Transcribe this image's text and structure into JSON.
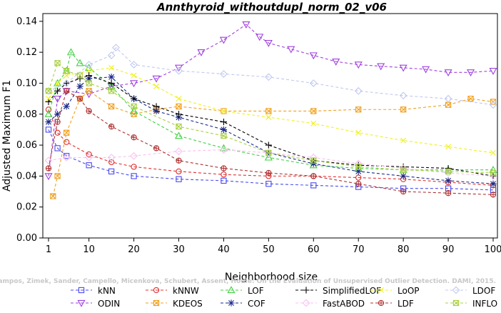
{
  "chart_data": {
    "type": "line",
    "title": "Annthyroid_withoutdupl_norm_02_v06",
    "xlabel": "Neighborhood size",
    "ylabel": "Adjusted Maximum F1",
    "xlim": [
      1,
      100
    ],
    "ylim": [
      0.0,
      0.145
    ],
    "xticks": [
      "1",
      "10",
      "20",
      "30",
      "40",
      "50",
      "60",
      "70",
      "80",
      "90",
      "100"
    ],
    "xtick_values": [
      1,
      10,
      20,
      30,
      40,
      50,
      60,
      70,
      80,
      90,
      100
    ],
    "yticks": [
      "0.00",
      "0.02",
      "0.04",
      "0.06",
      "0.08",
      "0.10",
      "0.12",
      "0.14"
    ],
    "ytick_values": [
      0.0,
      0.02,
      0.04,
      0.06,
      0.08,
      0.1,
      0.12,
      0.14
    ],
    "grid": false,
    "legend_position": "bottom",
    "watermark": "Campos, Zimek, Sander, Campello, Micenkova, Schubert, Assent, Houle: On the Evaluation of Unsupervised Outlier Detection. DAMI, 2015.",
    "series": [
      {
        "name": "kNN",
        "color": "#4a4af0",
        "marker": "square",
        "x": [
          1,
          3,
          5,
          10,
          15,
          20,
          30,
          40,
          50,
          60,
          70,
          80,
          90,
          100
        ],
        "y": [
          0.07,
          0.058,
          0.053,
          0.047,
          0.043,
          0.04,
          0.038,
          0.037,
          0.035,
          0.034,
          0.033,
          0.032,
          0.032,
          0.031
        ]
      },
      {
        "name": "ODIN",
        "color": "#a040e0",
        "marker": "triangle-down",
        "x": [
          1,
          3,
          5,
          10,
          15,
          20,
          25,
          30,
          35,
          40,
          45,
          48,
          50,
          55,
          60,
          65,
          70,
          75,
          80,
          85,
          90,
          95,
          100
        ],
        "y": [
          0.04,
          0.09,
          0.095,
          0.093,
          0.098,
          0.1,
          0.103,
          0.11,
          0.12,
          0.128,
          0.138,
          0.13,
          0.126,
          0.122,
          0.118,
          0.114,
          0.112,
          0.111,
          0.11,
          0.109,
          0.107,
          0.107,
          0.108
        ]
      },
      {
        "name": "kNNW",
        "color": "#e03030",
        "marker": "circle",
        "x": [
          1,
          3,
          5,
          10,
          15,
          20,
          30,
          40,
          50,
          60,
          70,
          80,
          90,
          100
        ],
        "y": [
          0.083,
          0.068,
          0.062,
          0.054,
          0.049,
          0.046,
          0.043,
          0.041,
          0.04,
          0.04,
          0.039,
          0.038,
          0.036,
          0.034
        ]
      },
      {
        "name": "KDEOS",
        "color": "#f0a020",
        "marker": "square-x",
        "x": [
          2,
          3,
          5,
          8,
          10,
          15,
          20,
          25,
          30,
          40,
          50,
          60,
          70,
          80,
          90,
          95,
          100
        ],
        "y": [
          0.027,
          0.04,
          0.068,
          0.09,
          0.095,
          0.085,
          0.08,
          0.083,
          0.085,
          0.082,
          0.082,
          0.082,
          0.083,
          0.083,
          0.086,
          0.09,
          0.088
        ]
      },
      {
        "name": "LOF",
        "color": "#40d040",
        "marker": "triangle-up",
        "x": [
          1,
          3,
          5,
          6,
          8,
          10,
          15,
          20,
          30,
          40,
          50,
          60,
          70,
          80,
          90,
          100
        ],
        "y": [
          0.08,
          0.1,
          0.108,
          0.12,
          0.113,
          0.11,
          0.098,
          0.082,
          0.066,
          0.058,
          0.052,
          0.047,
          0.045,
          0.044,
          0.044,
          0.044
        ]
      },
      {
        "name": "COF",
        "color": "#1a2a8a",
        "marker": "star",
        "x": [
          1,
          3,
          5,
          8,
          10,
          15,
          20,
          25,
          30,
          40,
          50,
          60,
          70,
          80,
          90,
          100
        ],
        "y": [
          0.075,
          0.08,
          0.085,
          0.098,
          0.103,
          0.104,
          0.09,
          0.082,
          0.078,
          0.07,
          0.055,
          0.048,
          0.043,
          0.04,
          0.037,
          0.035
        ]
      },
      {
        "name": "SimplifiedLOF",
        "color": "#000000",
        "marker": "plus",
        "x": [
          1,
          3,
          5,
          8,
          10,
          15,
          20,
          25,
          30,
          40,
          50,
          60,
          70,
          80,
          90,
          100
        ],
        "y": [
          0.088,
          0.095,
          0.1,
          0.103,
          0.105,
          0.1,
          0.09,
          0.085,
          0.08,
          0.075,
          0.06,
          0.05,
          0.047,
          0.046,
          0.045,
          0.04
        ]
      },
      {
        "name": "FastABOD",
        "color": "#f8c0f0",
        "marker": "diamond",
        "x": [
          1,
          5,
          10,
          15,
          20,
          30,
          40,
          50,
          60,
          70,
          80,
          90,
          100
        ],
        "y": [
          0.05,
          0.052,
          0.052,
          0.052,
          0.053,
          0.056,
          0.057,
          0.055,
          0.052,
          0.048,
          0.045,
          0.042,
          0.04
        ]
      },
      {
        "name": "LoOP",
        "color": "#f0f020",
        "marker": "cross",
        "x": [
          1,
          3,
          5,
          10,
          15,
          20,
          25,
          30,
          40,
          50,
          60,
          70,
          80,
          90,
          100
        ],
        "y": [
          0.09,
          0.1,
          0.105,
          0.108,
          0.11,
          0.105,
          0.098,
          0.09,
          0.082,
          0.078,
          0.074,
          0.068,
          0.063,
          0.059,
          0.055
        ]
      },
      {
        "name": "LDF",
        "color": "#b03030",
        "marker": "circle-plus",
        "x": [
          1,
          3,
          5,
          8,
          10,
          15,
          20,
          25,
          30,
          40,
          50,
          60,
          70,
          80,
          90,
          100
        ],
        "y": [
          0.045,
          0.075,
          0.095,
          0.09,
          0.082,
          0.072,
          0.065,
          0.058,
          0.05,
          0.045,
          0.042,
          0.04,
          0.035,
          0.03,
          0.029,
          0.028
        ]
      },
      {
        "name": "LDOF",
        "color": "#c0c8f0",
        "marker": "diamond",
        "x": [
          1,
          5,
          10,
          15,
          16,
          20,
          30,
          40,
          50,
          60,
          70,
          80,
          90,
          100
        ],
        "y": [
          0.095,
          0.1,
          0.112,
          0.118,
          0.123,
          0.112,
          0.108,
          0.106,
          0.104,
          0.1,
          0.095,
          0.092,
          0.09,
          0.086
        ]
      },
      {
        "name": "INFLO",
        "color": "#a8d040",
        "marker": "square-x",
        "x": [
          1,
          3,
          5,
          8,
          10,
          15,
          20,
          30,
          40,
          50,
          60,
          70,
          80,
          90,
          100
        ],
        "y": [
          0.095,
          0.113,
          0.108,
          0.105,
          0.1,
          0.095,
          0.085,
          0.072,
          0.066,
          0.055,
          0.05,
          0.046,
          0.044,
          0.043,
          0.042
        ]
      }
    ]
  }
}
